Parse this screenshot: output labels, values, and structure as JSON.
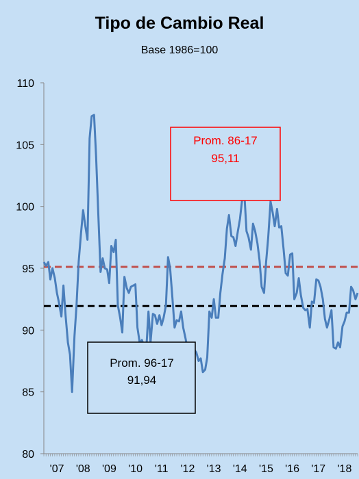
{
  "chart_data": {
    "type": "line",
    "title": "Tipo de Cambio Real",
    "subtitle": "Base 1986=100",
    "xlabel": "",
    "ylabel": "",
    "ylim": [
      80,
      110
    ],
    "yticks": [
      "80",
      "85",
      "90",
      "95",
      "100",
      "105",
      "110"
    ],
    "xtick_labels": [
      "'07",
      "'08",
      "'09",
      "'10",
      "'11",
      "'12",
      "'13",
      "'14",
      "'15",
      "'16",
      "'17",
      "'18"
    ],
    "x_start": 2007.0,
    "x_end": 2019.0,
    "series": [
      {
        "color": "#4a7ebb",
        "x": [
          2007.0,
          2007.08,
          2007.17,
          2007.25,
          2007.33,
          2007.42,
          2007.5,
          2007.58,
          2007.67,
          2007.75,
          2007.83,
          2007.92,
          2008.0,
          2008.08,
          2008.17,
          2008.25,
          2008.33,
          2008.42,
          2008.5,
          2008.58,
          2008.67,
          2008.75,
          2008.83,
          2008.92,
          2009.0,
          2009.08,
          2009.17,
          2009.25,
          2009.33,
          2009.42,
          2009.5,
          2009.58,
          2009.67,
          2009.75,
          2009.83,
          2009.92,
          2010.0,
          2010.08,
          2010.17,
          2010.25,
          2010.33,
          2010.42,
          2010.5,
          2010.58,
          2010.67,
          2010.75,
          2010.83,
          2010.92,
          2011.0,
          2011.08,
          2011.17,
          2011.25,
          2011.33,
          2011.42,
          2011.5,
          2011.58,
          2011.67,
          2011.75,
          2011.83,
          2011.92,
          2012.0,
          2012.08,
          2012.17,
          2012.25,
          2012.33,
          2012.42,
          2012.5,
          2012.58,
          2012.67,
          2012.75,
          2012.83,
          2012.92,
          2013.0,
          2013.08,
          2013.17,
          2013.25,
          2013.33,
          2013.42,
          2013.5,
          2013.58,
          2013.67,
          2013.75,
          2013.83,
          2013.92,
          2014.0,
          2014.08,
          2014.17,
          2014.25,
          2014.33,
          2014.42,
          2014.5,
          2014.58,
          2014.67,
          2014.75,
          2014.83,
          2014.92,
          2015.0,
          2015.08,
          2015.17,
          2015.25,
          2015.33,
          2015.42,
          2015.5,
          2015.58,
          2015.67,
          2015.75,
          2015.83,
          2015.92,
          2016.0,
          2016.08,
          2016.17,
          2016.25,
          2016.33,
          2016.42,
          2016.5,
          2016.58,
          2016.67,
          2016.75,
          2016.83,
          2016.92,
          2017.0,
          2017.08,
          2017.17,
          2017.25,
          2017.33,
          2017.42,
          2017.5,
          2017.58,
          2017.67,
          2017.75,
          2017.83,
          2017.92,
          2018.0,
          2018.08,
          2018.17,
          2018.25,
          2018.33,
          2018.42,
          2018.5,
          2018.58,
          2018.67,
          2018.75,
          2018.83,
          2018.92
        ],
        "values": [
          95.5,
          95.2,
          95.5,
          94.1,
          95.0,
          94.2,
          93.0,
          92.2,
          91.1,
          93.6,
          91.2,
          89.0,
          88.0,
          85.0,
          89.5,
          92.0,
          95.5,
          97.8,
          99.7,
          98.5,
          97.3,
          105.5,
          107.3,
          107.4,
          104.0,
          99.5,
          94.7,
          95.8,
          95.0,
          94.9,
          93.8,
          96.8,
          96.3,
          97.3,
          92.0,
          91.0,
          89.8,
          94.3,
          93.4,
          93.0,
          93.5,
          93.6,
          93.7,
          90.2,
          88.9,
          89.2,
          88.7,
          88.5,
          91.5,
          89.0,
          91.3,
          91.2,
          90.5,
          91.2,
          90.4,
          91.0,
          92.0,
          95.9,
          95.0,
          92.5,
          90.2,
          90.8,
          90.7,
          91.5,
          90.2,
          89.3,
          88.4,
          87.9,
          87.6,
          88.4,
          88.2,
          87.5,
          87.7,
          86.6,
          86.8,
          87.8,
          91.5,
          91.0,
          92.5,
          91.0,
          91.0,
          93.0,
          94.5,
          95.8,
          98.2,
          99.3,
          97.6,
          97.5,
          96.8,
          98.0,
          99.0,
          100.5,
          101.0,
          98.0,
          97.5,
          96.5,
          98.6,
          98.0,
          97.0,
          95.6,
          93.5,
          93.0,
          95.5,
          97.5,
          100.4,
          99.5,
          98.4,
          99.8,
          98.3,
          98.4,
          96.5,
          94.6,
          94.4,
          96.1,
          96.2,
          92.5,
          93.0,
          94.2,
          92.8,
          91.8,
          91.6,
          91.7,
          90.2,
          92.3,
          92.2,
          94.1,
          94.0,
          93.5,
          92.5,
          90.9,
          90.2,
          90.9,
          91.6,
          88.6,
          88.5,
          89.0,
          88.6,
          90.3,
          90.7,
          91.4,
          91.4,
          93.5,
          93.2,
          92.5
        ]
      }
    ],
    "reference_lines": [
      {
        "value": 95.11,
        "color": "#c0504d"
      },
      {
        "value": 91.94,
        "color": "#000000"
      }
    ],
    "annotations": [
      {
        "line1": "Prom. 86-17",
        "line2": "95,11",
        "color": "#ff0000"
      },
      {
        "line1": "Prom. 96-17",
        "line2": "91,94",
        "color": "#000000"
      }
    ],
    "extra_points": {
      "x": [
        2019.0
      ],
      "values": [
        93.0
      ]
    },
    "grid": false,
    "legend": "none"
  }
}
